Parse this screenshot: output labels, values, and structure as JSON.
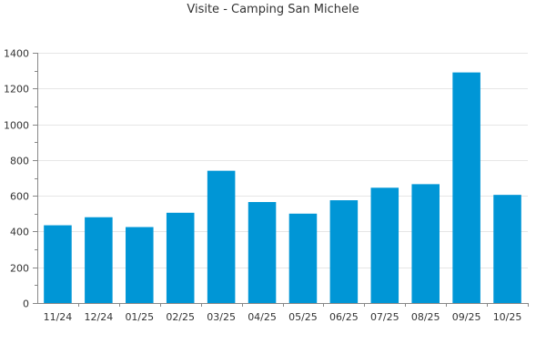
{
  "chart_data": {
    "type": "bar",
    "title": "Visite - Camping San Michele",
    "xlabel": "",
    "ylabel": "",
    "categories": [
      "11/24",
      "12/24",
      "01/25",
      "02/25",
      "03/25",
      "04/25",
      "05/25",
      "06/25",
      "07/25",
      "08/25",
      "09/25",
      "10/25"
    ],
    "values": [
      435,
      480,
      425,
      505,
      740,
      565,
      500,
      575,
      645,
      665,
      1290,
      605
    ],
    "ylim": [
      0,
      1400
    ],
    "yticks": [
      0,
      200,
      400,
      600,
      800,
      1000,
      1200,
      1400
    ],
    "grid": true,
    "bar_color": "#0096D6",
    "grid_color": "#E6E6E6",
    "axis_color": "#888888"
  }
}
